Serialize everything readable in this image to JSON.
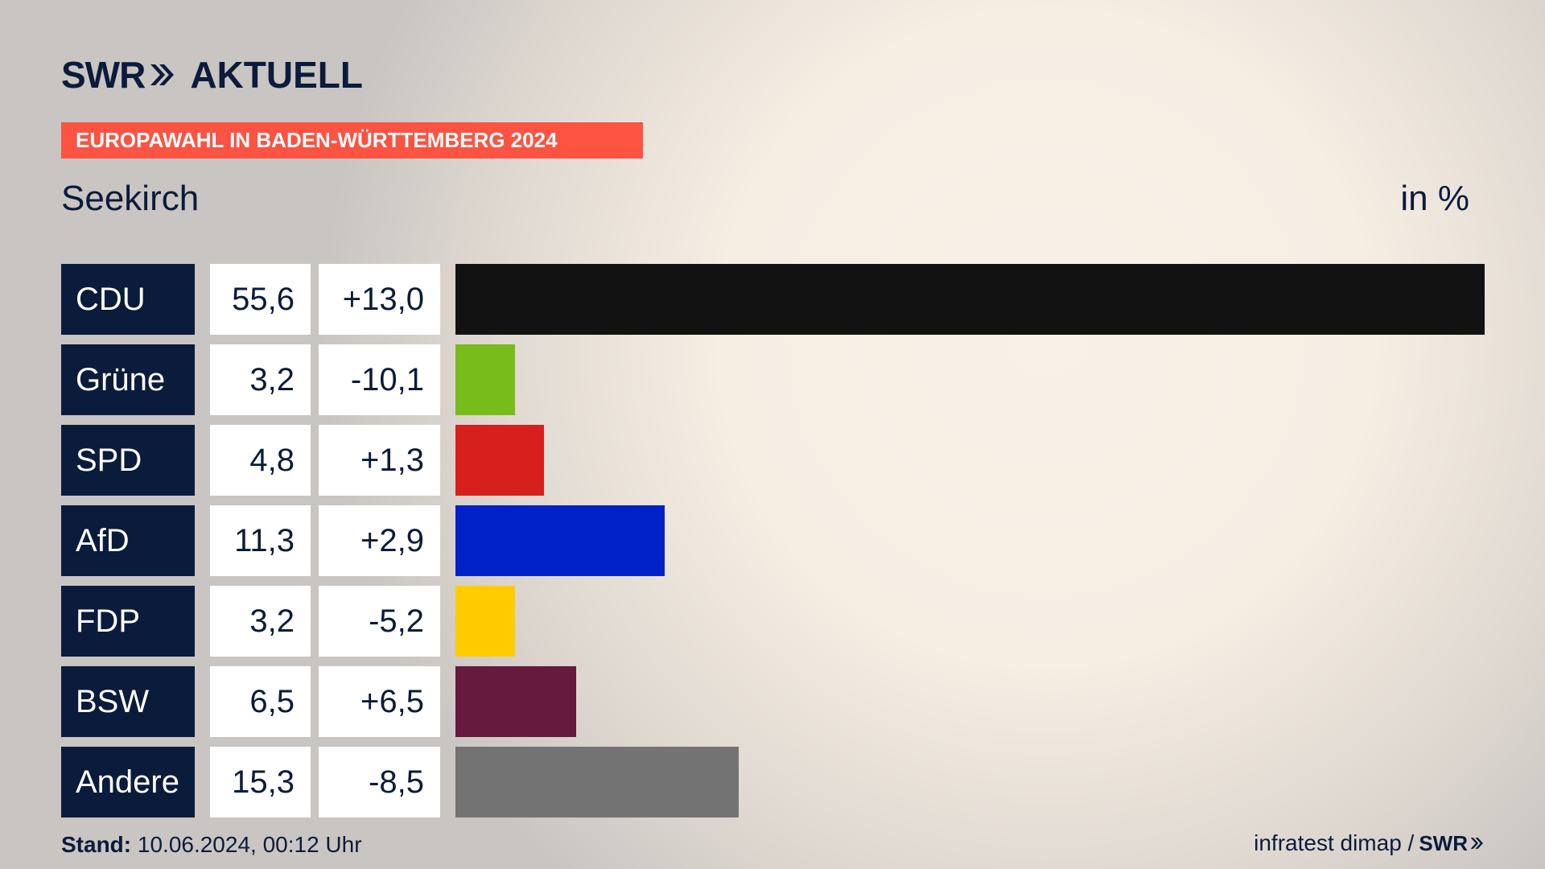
{
  "header": {
    "logo_swr": "SWR",
    "logo_aktuell": "AKTUELL",
    "banner": "EUROPAWAHL IN BADEN-WÜRTTEMBERG 2024",
    "location": "Seekirch",
    "unit": "in %"
  },
  "colors": {
    "brand_navy": "#0b1b3b",
    "banner_red": "#fc5342"
  },
  "chart_data": {
    "type": "bar",
    "orientation": "horizontal",
    "title": "Seekirch",
    "unit": "in %",
    "categories": [
      "CDU",
      "Grüne",
      "SPD",
      "AfD",
      "FDP",
      "BSW",
      "Andere"
    ],
    "series": [
      {
        "name": "",
        "values": [
          55.6,
          3.2,
          4.8,
          11.3,
          3.2,
          6.5,
          15.3
        ]
      }
    ],
    "values_label": [
      "55,6",
      "3,2",
      "4,8",
      "11,3",
      "3,2",
      "6,5",
      "15,3"
    ],
    "diffs_label": [
      "+13,0",
      "-10,1",
      "+1,3",
      "+2,9",
      "-5,2",
      "+6,5",
      "-8,5"
    ],
    "diffs": [
      13.0,
      -10.1,
      1.3,
      2.9,
      -5.2,
      6.5,
      -8.5
    ],
    "colors": [
      "#121212",
      "#78bc1b",
      "#d71f1d",
      "#0021c8",
      "#ffcc00",
      "#661a3e",
      "#737373"
    ],
    "xlim": [
      0,
      55.6
    ],
    "grid": false
  },
  "footer": {
    "stand_label": "Stand:",
    "stand_value": "10.06.2024, 00:12 Uhr",
    "source": "infratest dimap /",
    "source_logo": "SWR"
  }
}
